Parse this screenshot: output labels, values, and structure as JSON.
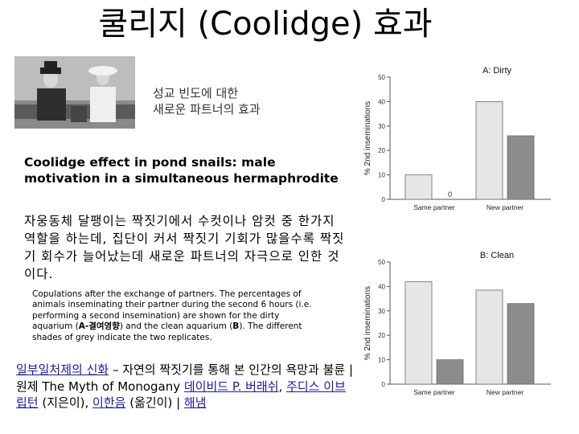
{
  "slide": {
    "title": "쿨리지 (Coolidge) 효과",
    "subtitle": "성교 빈도에 대한\n새로운 파트너의 효과",
    "paper_title": "Coolidge effect in pond snails: male motivation in a simultaneous hermaphrodite",
    "korean_summary": "자웅동체 달팽이는 짝짓기에서 수컷이나 암컷 중 한가지 역할을 하는데, 집단이 커서 짝짓기 기회가 많을수록 짝짓기 회수가 늘어났는데 새로운 파트너의 자극으로 인한 것이다.",
    "caption": {
      "part1": "Copulations after the exchange of partners. The percentages of animals inseminating their partner during the second 6 hours (i.e. performing a second insemination) are shown for the dirty aquarium (",
      "bold1": "A-결여영향",
      "part2": ") and the clean aquarium (",
      "bold2": "B",
      "part3": "). The different shades of grey indicate the two replicates."
    },
    "reference": {
      "link1": "일부일처제의 신화",
      "text1": " – 자연의 짝짓기를 통해 본 인간의 욕망과 불륜 | 원제 The Myth of Monogany ",
      "link2": "데이비드 P. 버래쉬",
      "sep1": ", ",
      "link3": "주디스 이브 립턴",
      "text2": " (지은이), ",
      "link4": "이한음",
      "text3": " (옮긴이) | ",
      "link5": "해냄"
    }
  },
  "colors": {
    "replicate_1": "#e6e6e6",
    "replicate_2": "#8c8c8c",
    "axis": "#555555",
    "link": "#1a1aa6"
  },
  "chart_data": [
    {
      "type": "bar",
      "panel_label": "A: Dirty",
      "categories": [
        "Same partner",
        "New partner"
      ],
      "series": [
        {
          "values": [
            10,
            40
          ]
        },
        {
          "values": [
            0,
            26
          ]
        }
      ],
      "value_labels": [
        "",
        "0",
        "",
        ""
      ],
      "ylabel": "% 2nd inseminations",
      "ylim": [
        0,
        50
      ],
      "yticks": [
        0,
        10,
        20,
        30,
        40,
        50
      ],
      "legend": "none"
    },
    {
      "type": "bar",
      "panel_label": "B: Clean",
      "categories": [
        "Same partner",
        "New partner"
      ],
      "series": [
        {
          "values": [
            42,
            38.5
          ]
        },
        {
          "values": [
            10,
            33
          ]
        }
      ],
      "ylabel": "% 2nd inseminations",
      "ylim": [
        0,
        50
      ],
      "yticks": [
        0,
        10,
        20,
        30,
        40,
        50
      ],
      "legend": "none"
    }
  ]
}
